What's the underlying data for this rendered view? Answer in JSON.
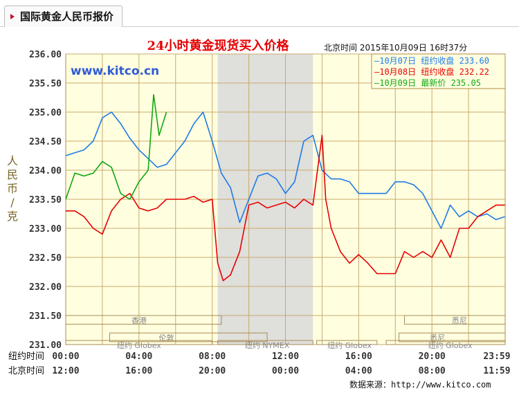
{
  "tab": {
    "title": "国际黄金人民币报价"
  },
  "colors": {
    "series_0707": "#1e7ae6",
    "series_0708": "#e60000",
    "series_0709": "#12a612",
    "grid": "#c9a96b",
    "plot_bg": "#ffffe0",
    "shade": "#d9d9d9",
    "title_red": "#e60000",
    "watermark": "#2f5bd8"
  },
  "chart_data": {
    "type": "line",
    "title": "24小时黄金现货买入价格",
    "timestamp": "北京时间  2015年10月09日 16时37分",
    "watermark": "www.kitco.cn",
    "ylabel": "人民币/克",
    "ylim": [
      231.0,
      236.0
    ],
    "y_ticks": [
      "236.00",
      "235.50",
      "235.00",
      "234.50",
      "234.00",
      "233.50",
      "233.00",
      "232.50",
      "232.00",
      "231.50",
      "231.00"
    ],
    "xlim": [
      0,
      24
    ],
    "x_row_labels": [
      "纽约时间",
      "北京时间"
    ],
    "x_ticks_ny": [
      "00:00",
      "04:00",
      "08:00",
      "12:00",
      "16:00",
      "20:00",
      "23:59"
    ],
    "x_ticks_bj": [
      "12:00",
      "16:00",
      "20:00",
      "00:00",
      "04:00",
      "08:00",
      "11:59"
    ],
    "legend": [
      {
        "prefix": "—",
        "date": "10月07日",
        "label": "纽约收盘",
        "value": "233.60"
      },
      {
        "prefix": "—",
        "date": "10月08日",
        "label": "纽约收盘",
        "value": "232.22"
      },
      {
        "prefix": "—",
        "date": "10月09日",
        "label": "最新价",
        "value": "235.05"
      }
    ],
    "session_labels": {
      "hk": "香港",
      "london": "伦敦",
      "ny_globex": "纽约 Globex",
      "ny_nymex": "纽约 NYMEX",
      "sydney": "悉尼"
    },
    "shaded_range": [
      8.3,
      13.5
    ],
    "series": [
      {
        "name": "10月07日",
        "x": [
          0,
          0.5,
          1,
          1.5,
          2,
          2.5,
          3,
          3.5,
          4,
          4.5,
          5,
          5.5,
          6,
          6.5,
          7,
          7.5,
          8,
          8.5,
          9,
          9.5,
          10,
          10.5,
          11,
          11.5,
          12,
          12.5,
          13,
          13.5,
          14,
          14.5,
          15,
          15.5,
          16,
          16.5,
          17,
          17.5,
          18,
          18.5,
          19,
          19.5,
          20,
          20.5,
          21,
          21.5,
          22,
          22.5,
          23,
          23.5,
          23.98
        ],
        "y": [
          234.25,
          234.3,
          234.35,
          234.5,
          234.9,
          235.0,
          234.8,
          234.55,
          234.35,
          234.2,
          234.05,
          234.1,
          234.3,
          234.5,
          234.8,
          235.0,
          234.5,
          233.95,
          233.7,
          233.1,
          233.5,
          233.9,
          233.95,
          233.85,
          233.6,
          233.8,
          234.5,
          234.6,
          234.0,
          233.85,
          233.85,
          233.8,
          233.6,
          233.6,
          233.6,
          233.6,
          233.8,
          233.8,
          233.75,
          233.6,
          233.3,
          233.0,
          233.4,
          233.2,
          233.3,
          233.2,
          233.25,
          233.15,
          233.2
        ]
      },
      {
        "name": "10月08日",
        "x": [
          0,
          0.5,
          1,
          1.5,
          2,
          2.5,
          3,
          3.5,
          4,
          4.5,
          5,
          5.5,
          6,
          6.5,
          7,
          7.5,
          8,
          8.3,
          8.6,
          9,
          9.5,
          10,
          10.5,
          11,
          11.5,
          12,
          12.5,
          13,
          13.5,
          14,
          14.2,
          14.5,
          15,
          15.5,
          16,
          16.5,
          17,
          17.5,
          18,
          18.5,
          19,
          19.5,
          20,
          20.5,
          21,
          21.5,
          22,
          22.5,
          23,
          23.5,
          23.98
        ],
        "y": [
          233.3,
          233.3,
          233.2,
          233.0,
          232.9,
          233.3,
          233.5,
          233.6,
          233.35,
          233.3,
          233.35,
          233.5,
          233.5,
          233.5,
          233.55,
          233.45,
          233.5,
          232.4,
          232.1,
          232.2,
          232.6,
          233.4,
          233.45,
          233.35,
          233.4,
          233.45,
          233.35,
          233.5,
          233.4,
          234.6,
          233.5,
          233.0,
          232.6,
          232.4,
          232.55,
          232.4,
          232.22,
          232.22,
          232.22,
          232.6,
          232.5,
          232.6,
          232.5,
          232.8,
          232.5,
          233.0,
          233.0,
          233.2,
          233.3,
          233.4,
          233.4
        ]
      },
      {
        "name": "10月09日",
        "x": [
          0,
          0.5,
          1,
          1.5,
          2,
          2.5,
          3,
          3.5,
          4,
          4.5,
          4.8,
          5.1,
          5.5
        ],
        "y": [
          233.5,
          233.95,
          233.9,
          233.95,
          234.15,
          234.05,
          233.6,
          233.5,
          233.8,
          234.0,
          235.3,
          234.6,
          235.0
        ]
      }
    ]
  }
}
